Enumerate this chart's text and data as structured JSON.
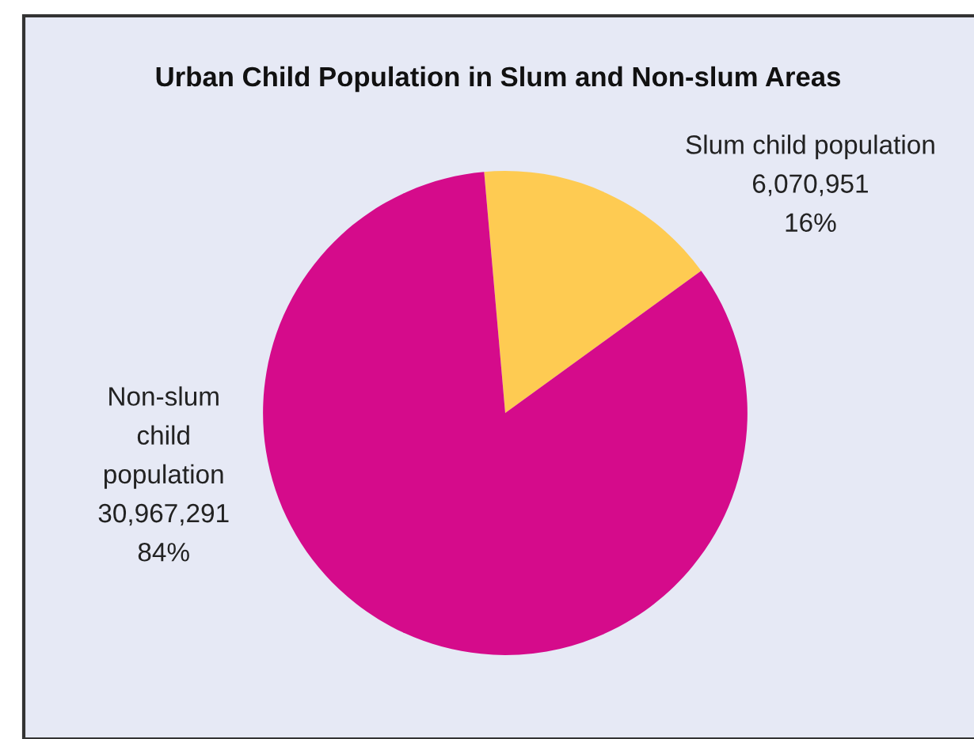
{
  "chart_data": {
    "type": "pie",
    "title": "Urban Child Population in Slum and Non-slum Areas",
    "categories": [
      "Slum child population",
      "Non-slum\nchild\npopulation"
    ],
    "values": [
      6070951,
      30967291
    ],
    "value_labels": [
      "6,070,951\n16%",
      "30,967,291\n84%"
    ],
    "colors": [
      "#fecb52",
      "#d50b8b"
    ],
    "legend": false
  }
}
